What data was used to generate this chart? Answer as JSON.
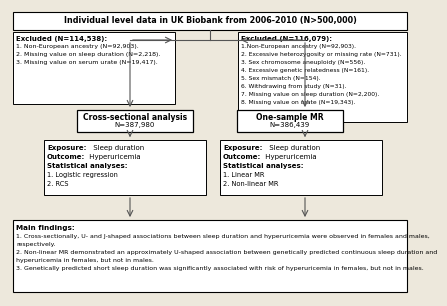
{
  "title": "Individual level data in UK Biobank from 2006-2010 (N>500,000)",
  "excluded_left_title": "Excluded (N=114,538):",
  "excluded_left_items": [
    "1. Non-European ancestry (N=92,903).",
    "2. Missing value on sleep duration (N=2,218).",
    "3. Missing value on serum urate (N=19,417)."
  ],
  "excluded_right_title": "Excluded (N=116,079):",
  "excluded_right_items": [
    "1.Non-European ancestry (N=92,903).",
    "2. Excessive heterozygosity or missing rate (N=731).",
    "3. Sex chromosome aneuploidy (N=556).",
    "4. Excessive genetic relatedness (N=161).",
    "5. Sex mismatch (N=154).",
    "6. Withdrawing from study (N=31).",
    "7. Missing value on sleep duration (N=2,200).",
    "8. Missing value on urate (N=19,343)."
  ],
  "cross_sectional_title": "Cross-sectional analysis",
  "cross_sectional_n": "N=387,980",
  "one_sample_title": "One-sample MR",
  "one_sample_n": "N=386,439",
  "left_box_items": [
    "1. Logistic regression",
    "2. RCS"
  ],
  "right_box_items": [
    "1. Linear MR",
    "2. Non-linear MR"
  ],
  "findings_title": "Main findings:",
  "findings_items": [
    "1. Cross-sectionally, U- and J-shaped associations between sleep duration and hyperuricemia were observed in females and males,",
    "respectively.",
    "2. Non-linear MR demonstrated an approximately U-shaped association between genetically predicted continuous sleep duration and",
    "hyperuricemia in females, but not in males.",
    "3. Genetically predicted short sleep duration was significantly associated with risk of hyperuricemia in females, but not in males."
  ],
  "bg_color": "#ede8dc",
  "box_bg": "#ffffff"
}
